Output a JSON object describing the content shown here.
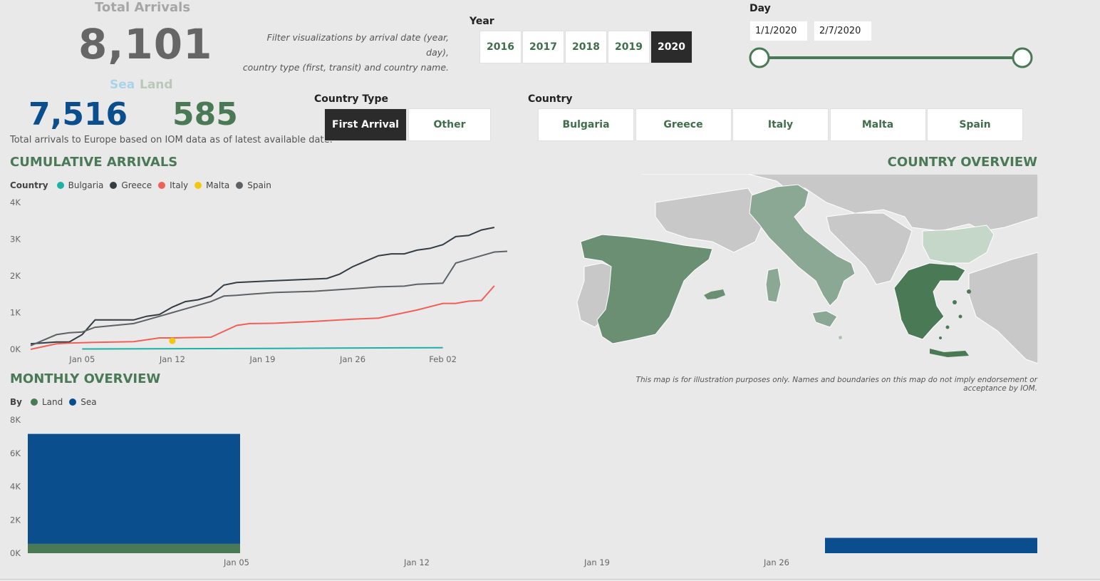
{
  "kpi": {
    "title": "Total Arrivals",
    "total": "8,101",
    "sea_label": "Sea",
    "land_label": "Land",
    "sea_value": "7,516",
    "land_value": "585",
    "note": "Total arrivals to Europe based on IOM data as of latest available date."
  },
  "filter_note_line1": "Filter visualizations by arrival date (year, day),",
  "filter_note_line2": "country type (first, transit) and country name.",
  "year_slicer": {
    "label": "Year",
    "options": [
      "2016",
      "2017",
      "2018",
      "2019",
      "2020"
    ],
    "selected": "2020"
  },
  "day_slicer": {
    "label": "Day",
    "start": "1/1/2020",
    "end": "2/7/2020",
    "range_fraction": [
      0,
      1
    ]
  },
  "country_type_slicer": {
    "label": "Country Type",
    "options": [
      "First Arrival",
      "Other"
    ],
    "selected": "First Arrival"
  },
  "country_slicer": {
    "label": "Country",
    "options": [
      "Bulgaria",
      "Greece",
      "Italy",
      "Malta",
      "Spain"
    ]
  },
  "cumulative": {
    "title": "CUMULATIVE ARRIVALS",
    "legend_title": "Country",
    "colors": {
      "Bulgaria": "#1ab3a6",
      "Greece": "#333d43",
      "Italy": "#ef6058",
      "Malta": "#f2c80f",
      "Spain": "#5d6266"
    }
  },
  "country_overview": {
    "title": "COUNTRY OVERVIEW",
    "note": "This map is for illustration purposes only. Names and boundaries on this map do not imply endorsement or acceptance by IOM.",
    "countries": [
      "Spain",
      "Italy",
      "Malta",
      "Greece",
      "Bulgaria"
    ]
  },
  "monthly": {
    "title": "MONTHLY OVERVIEW",
    "legend_title": "By",
    "colors": {
      "Land": "#4a7a55",
      "Sea": "#0b4e8d"
    }
  },
  "chart_data": [
    {
      "type": "line",
      "title": "CUMULATIVE ARRIVALS",
      "x_ticks": [
        "Jan 05",
        "Jan 12",
        "Jan 19",
        "Jan 26",
        "Feb 02"
      ],
      "y_ticks": [
        "0K",
        "1K",
        "2K",
        "3K",
        "4K"
      ],
      "ylim": [
        0,
        4000
      ],
      "x_range_days": [
        1,
        38
      ],
      "legend_placement": "top-left",
      "series": [
        {
          "name": "Bulgaria",
          "points": [
            [
              5,
              10
            ],
            [
              10,
              15
            ],
            [
              15,
              20
            ],
            [
              20,
              25
            ],
            [
              25,
              35
            ],
            [
              30,
              40
            ],
            [
              33,
              45
            ]
          ]
        },
        {
          "name": "Greece",
          "points": [
            [
              1,
              150
            ],
            [
              3,
              200
            ],
            [
              4,
              200
            ],
            [
              5,
              400
            ],
            [
              6,
              800
            ],
            [
              9,
              800
            ],
            [
              10,
              900
            ],
            [
              11,
              950
            ],
            [
              12,
              1150
            ],
            [
              13,
              1300
            ],
            [
              14,
              1350
            ],
            [
              15,
              1450
            ],
            [
              16,
              1750
            ],
            [
              17,
              1820
            ],
            [
              20,
              1870
            ],
            [
              24,
              1930
            ],
            [
              25,
              2050
            ],
            [
              26,
              2250
            ],
            [
              27,
              2400
            ],
            [
              28,
              2550
            ],
            [
              29,
              2600
            ],
            [
              30,
              2600
            ],
            [
              31,
              2700
            ],
            [
              32,
              2750
            ],
            [
              33,
              2850
            ],
            [
              34,
              3070
            ],
            [
              35,
              3100
            ],
            [
              36,
              3250
            ],
            [
              37,
              3320
            ]
          ]
        },
        {
          "name": "Italy",
          "points": [
            [
              1,
              0
            ],
            [
              3,
              150
            ],
            [
              4,
              170
            ],
            [
              5,
              180
            ],
            [
              6,
              190
            ],
            [
              9,
              210
            ],
            [
              11,
              310
            ],
            [
              12,
              310
            ],
            [
              15,
              330
            ],
            [
              17,
              650
            ],
            [
              18,
              700
            ],
            [
              20,
              710
            ],
            [
              23,
              760
            ],
            [
              26,
              820
            ],
            [
              28,
              850
            ],
            [
              31,
              1070
            ],
            [
              33,
              1250
            ],
            [
              34,
              1250
            ],
            [
              35,
              1310
            ],
            [
              36,
              1330
            ],
            [
              37,
              1730
            ]
          ]
        },
        {
          "name": "Malta",
          "points": [
            [
              12,
              230
            ]
          ]
        },
        {
          "name": "Spain",
          "points": [
            [
              1,
              100
            ],
            [
              3,
              400
            ],
            [
              4,
              450
            ],
            [
              5,
              470
            ],
            [
              6,
              600
            ],
            [
              9,
              700
            ],
            [
              10,
              800
            ],
            [
              11,
              900
            ],
            [
              12,
              1000
            ],
            [
              13,
              1100
            ],
            [
              14,
              1200
            ],
            [
              15,
              1300
            ],
            [
              16,
              1450
            ],
            [
              17,
              1470
            ],
            [
              18,
              1500
            ],
            [
              20,
              1550
            ],
            [
              23,
              1580
            ],
            [
              26,
              1650
            ],
            [
              28,
              1700
            ],
            [
              30,
              1720
            ],
            [
              31,
              1770
            ],
            [
              33,
              1800
            ],
            [
              34,
              2350
            ],
            [
              35,
              2450
            ],
            [
              36,
              2550
            ],
            [
              37,
              2650
            ],
            [
              38,
              2670
            ]
          ]
        }
      ]
    },
    {
      "type": "bar",
      "title": "MONTHLY OVERVIEW",
      "stacked": true,
      "x_ticks": [
        "Jan 05",
        "Jan 12",
        "Jan 19",
        "Jan 26"
      ],
      "y_ticks": [
        "0K",
        "2K",
        "4K",
        "6K",
        "8K"
      ],
      "ylim": [
        0,
        8000
      ],
      "legend_placement": "top-left",
      "categories": [
        "Jan 2020",
        "Feb 2020"
      ],
      "series": [
        {
          "name": "Land",
          "values": [
            560,
            0
          ]
        },
        {
          "name": "Sea",
          "values": [
            6600,
            920
          ]
        }
      ]
    }
  ]
}
